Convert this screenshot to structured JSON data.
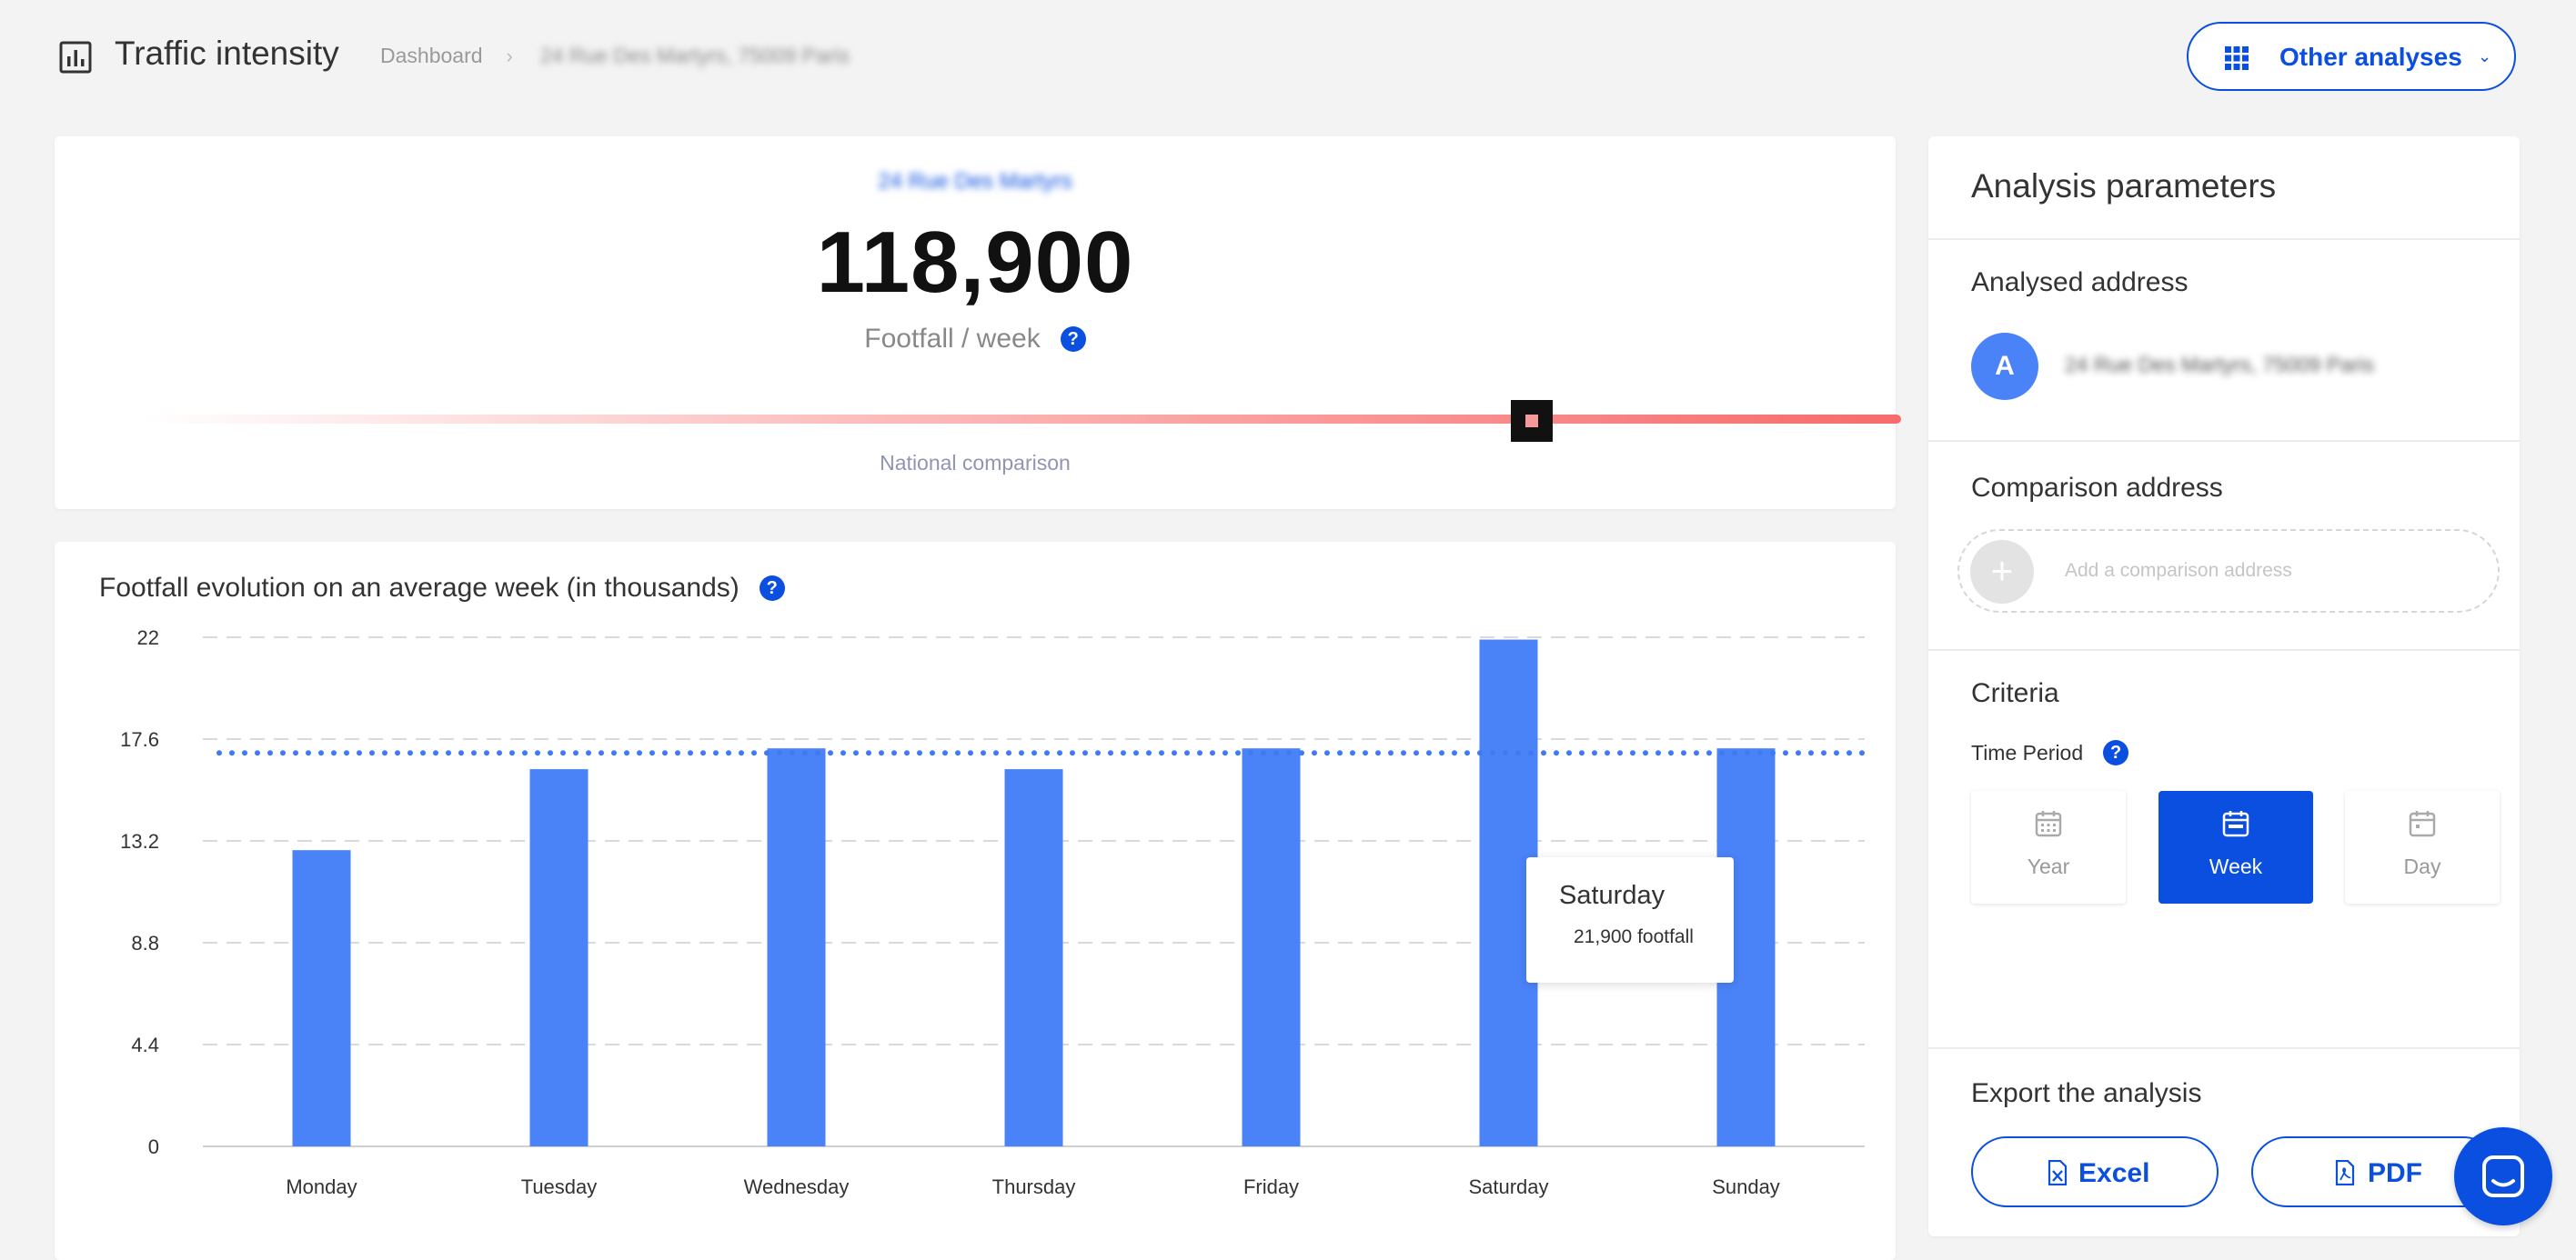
{
  "header": {
    "title": "Traffic intensity",
    "breadcrumb": [
      "Dashboard",
      "24 Rue Des Martyrs, 75009 Paris"
    ],
    "other_analyses_label": "Other analyses"
  },
  "kpi": {
    "address": "24 Rue Des Martyrs",
    "value": "118,900",
    "label": "Footfall / week",
    "comparison_label": "National comparison",
    "comparison_position": 0.79
  },
  "chart": {
    "title": "Footfall evolution on an average week (in thousands)",
    "tooltip": {
      "title": "Saturday",
      "value": "21,900 footfall"
    }
  },
  "chart_data": {
    "type": "bar",
    "title": "Footfall evolution on an average week (in thousands)",
    "categories": [
      "Monday",
      "Tuesday",
      "Wednesday",
      "Thursday",
      "Friday",
      "Saturday",
      "Sunday"
    ],
    "values": [
      12.8,
      16.3,
      17.2,
      16.3,
      17.2,
      21.9,
      17.2
    ],
    "average": 17.0,
    "yticks": [
      "0",
      "4.4",
      "8.8",
      "13.2",
      "17.6",
      "22"
    ],
    "ylim": [
      0,
      22
    ],
    "grid": true,
    "bar_color": "#4a83f7",
    "average_color": "#3f7af5"
  },
  "panel": {
    "title": "Analysis parameters",
    "analysed_title": "Analysed address",
    "analysed_avatar": "A",
    "analysed_address": "24 Rue Des Martyrs, 75009 Paris",
    "comparison_title": "Comparison address",
    "comparison_plus": "+",
    "comparison_placeholder": "Add a comparison address",
    "criteria_title": "Criteria",
    "time_period_label": "Time Period",
    "periods": [
      "Year",
      "Week",
      "Day"
    ],
    "active_period": "Week",
    "export_title": "Export the analysis",
    "export_buttons": [
      "Excel",
      "PDF"
    ]
  },
  "colors": {
    "accent": "#0a4fe0",
    "bar": "#4a83f7",
    "gauge": "#f76b6b"
  }
}
